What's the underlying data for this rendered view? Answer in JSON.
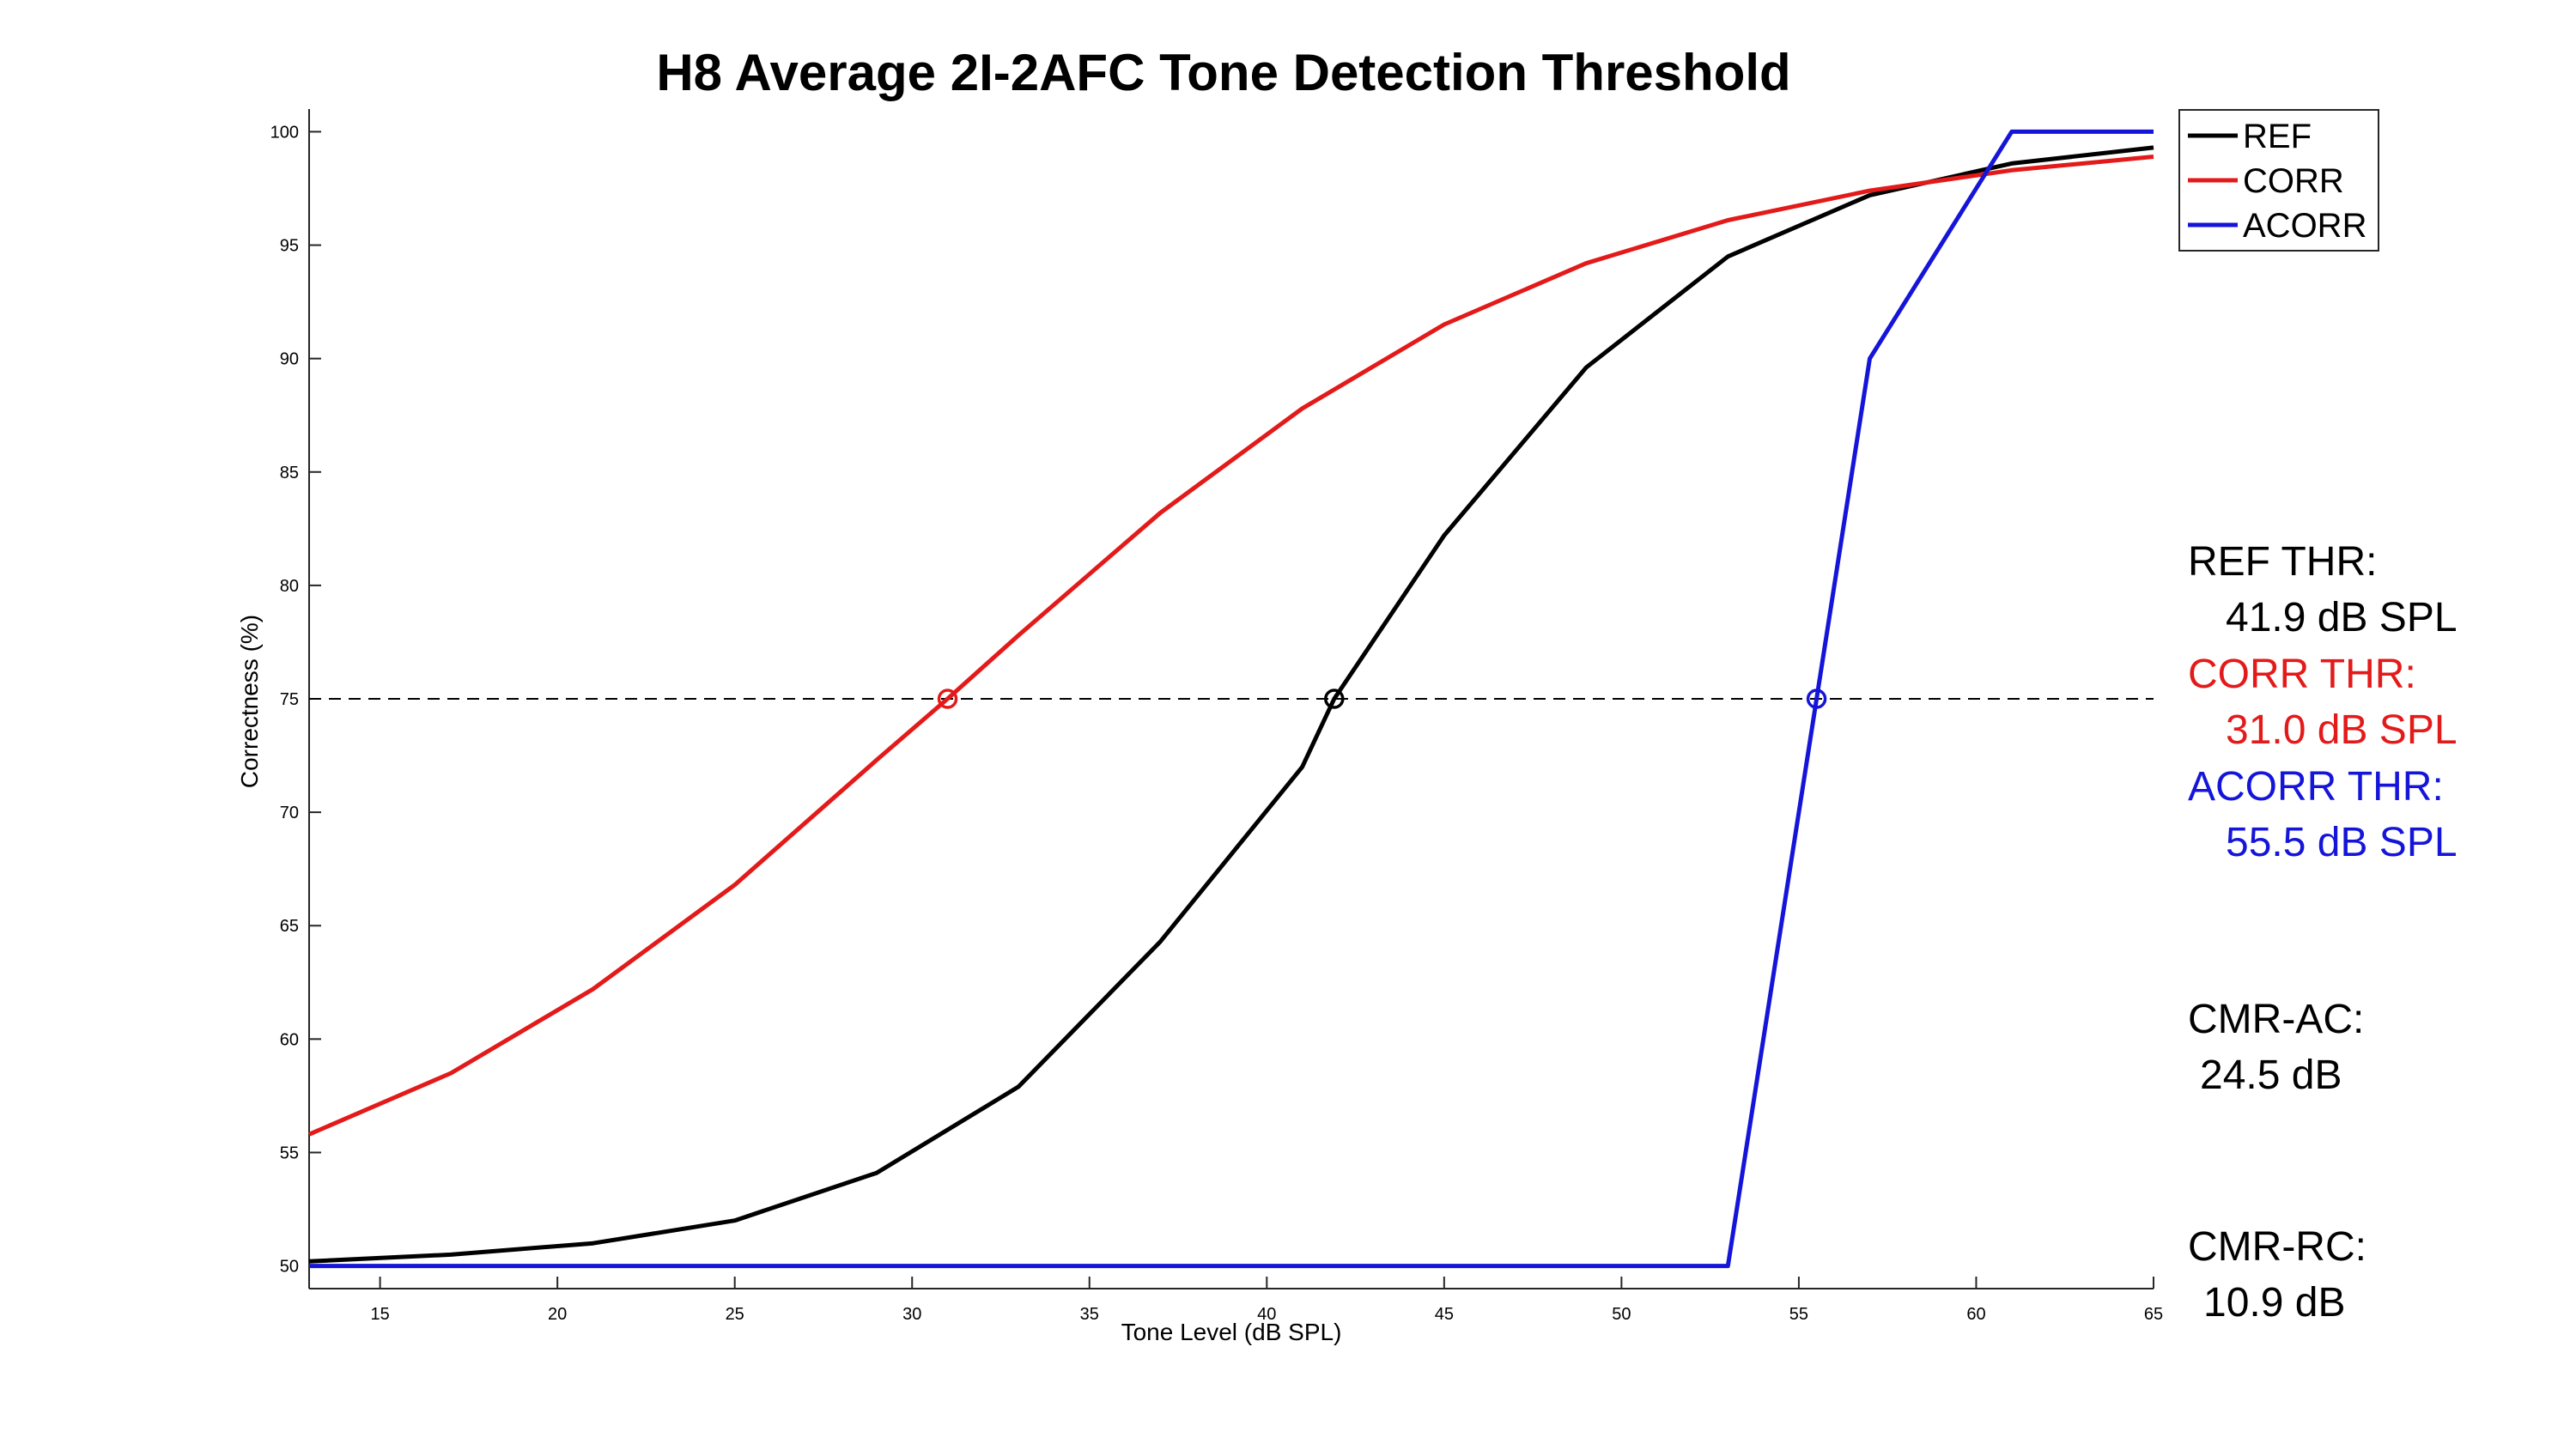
{
  "chart_data": {
    "type": "line",
    "title": "H8 Average 2I-2AFC Tone Detection Threshold",
    "xlabel": "Tone Level (dB SPL)",
    "ylabel": "Correctness (%)",
    "xlim": [
      13,
      65
    ],
    "ylim": [
      49,
      101
    ],
    "xticks": [
      15,
      20,
      25,
      30,
      35,
      40,
      45,
      50,
      55,
      60,
      65
    ],
    "yticks": [
      50,
      55,
      60,
      65,
      70,
      75,
      80,
      85,
      90,
      95,
      100
    ],
    "grid": false,
    "legend_position": "top-right",
    "reference_line": {
      "y": 75,
      "style": "dashed",
      "color": "#000000"
    },
    "series": [
      {
        "name": "REF",
        "color": "#000000",
        "points": [
          [
            13,
            50.2
          ],
          [
            17,
            50.5
          ],
          [
            21,
            51.0
          ],
          [
            25,
            52.0
          ],
          [
            29,
            54.1
          ],
          [
            33,
            57.9
          ],
          [
            37,
            64.3
          ],
          [
            41,
            72.0
          ],
          [
            41.9,
            75
          ],
          [
            45,
            82.2
          ],
          [
            49,
            89.6
          ],
          [
            53,
            94.5
          ],
          [
            57,
            97.2
          ],
          [
            61,
            98.6
          ],
          [
            65,
            99.3
          ]
        ],
        "threshold": {
          "x": 41.9,
          "y": 75
        }
      },
      {
        "name": "CORR",
        "color": "#e31a1a",
        "points": [
          [
            13,
            55.8
          ],
          [
            17,
            58.5
          ],
          [
            21,
            62.2
          ],
          [
            25,
            66.8
          ],
          [
            29,
            72.3
          ],
          [
            31,
            75
          ],
          [
            33,
            77.8
          ],
          [
            37,
            83.2
          ],
          [
            41,
            87.8
          ],
          [
            45,
            91.5
          ],
          [
            49,
            94.2
          ],
          [
            53,
            96.1
          ],
          [
            57,
            97.4
          ],
          [
            61,
            98.3
          ],
          [
            65,
            98.9
          ]
        ],
        "threshold": {
          "x": 31.0,
          "y": 75
        }
      },
      {
        "name": "ACORR",
        "color": "#1515d9",
        "points": [
          [
            13,
            50
          ],
          [
            53,
            50
          ],
          [
            55.5,
            75
          ],
          [
            57,
            90
          ],
          [
            61,
            100
          ],
          [
            65,
            100
          ]
        ],
        "threshold": {
          "x": 55.5,
          "y": 75
        }
      }
    ],
    "annotations": [
      {
        "label": "REF THR:",
        "value": "41.9 dB SPL",
        "color": "#000000"
      },
      {
        "label": "CORR THR:",
        "value": "31.0 dB SPL",
        "color": "#e31a1a"
      },
      {
        "label": "ACORR THR:",
        "value": "55.5 dB SPL",
        "color": "#1515d9"
      },
      {
        "label": "CMR-AC:",
        "value": "24.5 dB",
        "color": "#000000"
      },
      {
        "label": "CMR-RC:",
        "value": "10.9 dB",
        "color": "#000000"
      }
    ]
  }
}
